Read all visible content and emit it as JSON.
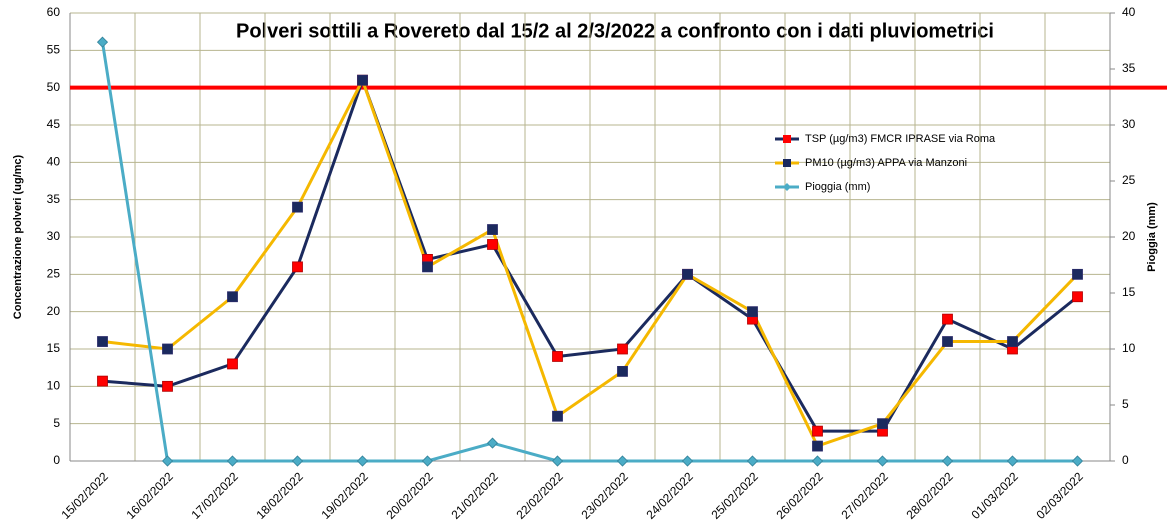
{
  "chart_data": {
    "type": "line",
    "title": "Polveri sottili a Rovereto dal 15/2 al 2/3/2022 a confronto con i dati pluviometrici",
    "y_label": "Concentrazione polveri (ug/mc)",
    "y2_label": "Pioggia (mm)",
    "categories": [
      "15/02/2022",
      "16/02/2022",
      "17/02/2022",
      "18/02/2022",
      "19/02/2022",
      "20/02/2022",
      "21/02/2022",
      "22/02/2022",
      "23/02/2022",
      "24/02/2022",
      "25/02/2022",
      "26/02/2022",
      "27/02/2022",
      "28/02/2022",
      "01/03/2022",
      "02/03/2022"
    ],
    "series": [
      {
        "name": "TSP (µg/m3) FMCR IPRASE via Roma",
        "color": "#1b2a5e",
        "marker_color": "#ff0000",
        "marker": "square",
        "values": [
          10.7,
          10,
          13,
          26,
          51,
          27,
          29,
          14,
          15,
          25,
          19,
          4,
          4,
          19,
          15,
          22
        ]
      },
      {
        "name": "PM10 (µg/m3) APPA via Manzoni",
        "color": "#f5b800",
        "marker_color": "#1b2a5e",
        "marker": "square",
        "values": [
          16,
          15,
          22,
          34,
          51,
          26,
          31,
          6,
          12,
          25,
          20,
          2,
          5,
          16,
          16,
          25
        ]
      },
      {
        "name": "Pioggia (mm)",
        "color": "#4bacc6",
        "marker_color": "#4bacc6",
        "marker": "diamond",
        "axis": "y2",
        "values": [
          37.4,
          0,
          0,
          0,
          0,
          0,
          1.6,
          0,
          0,
          0,
          0,
          0,
          0,
          0,
          0,
          0
        ]
      }
    ],
    "threshold": {
      "value": 50,
      "color": "#ff0000"
    },
    "ylim": [
      0,
      60
    ],
    "yticks": [
      0,
      5,
      10,
      15,
      20,
      25,
      30,
      35,
      40,
      45,
      50,
      55,
      60
    ],
    "y2lim": [
      0,
      40
    ],
    "y2ticks": [
      0,
      5,
      10,
      15,
      20,
      25,
      30,
      35,
      40
    ],
    "grid": true
  }
}
